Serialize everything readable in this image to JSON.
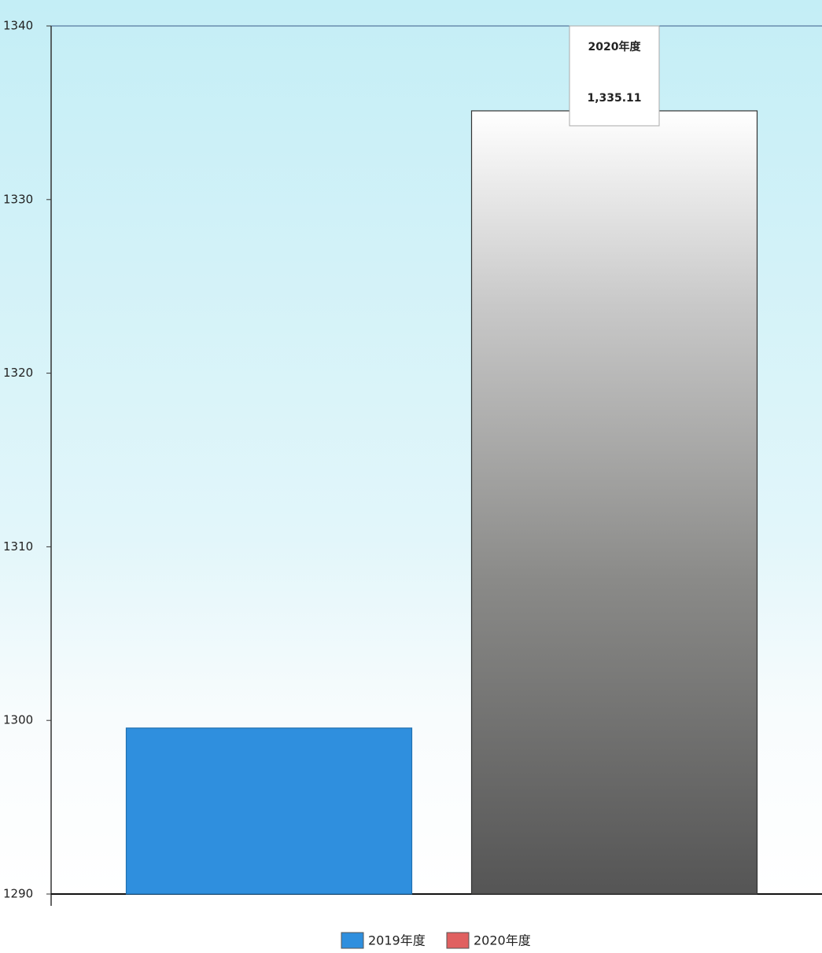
{
  "chart_data": {
    "type": "bar",
    "series": [
      {
        "name": "2019年度",
        "color": "#2f8fde",
        "values": [
          1299.56
        ]
      },
      {
        "name": "2020年度",
        "color": "#e06060",
        "values": [
          1335.11
        ],
        "value_labels": [
          "1,335.11"
        ]
      }
    ],
    "ylim": [
      1290,
      1340
    ],
    "yticks": [
      1290,
      1300,
      1310,
      1320,
      1330,
      1340
    ],
    "grid": false
  }
}
